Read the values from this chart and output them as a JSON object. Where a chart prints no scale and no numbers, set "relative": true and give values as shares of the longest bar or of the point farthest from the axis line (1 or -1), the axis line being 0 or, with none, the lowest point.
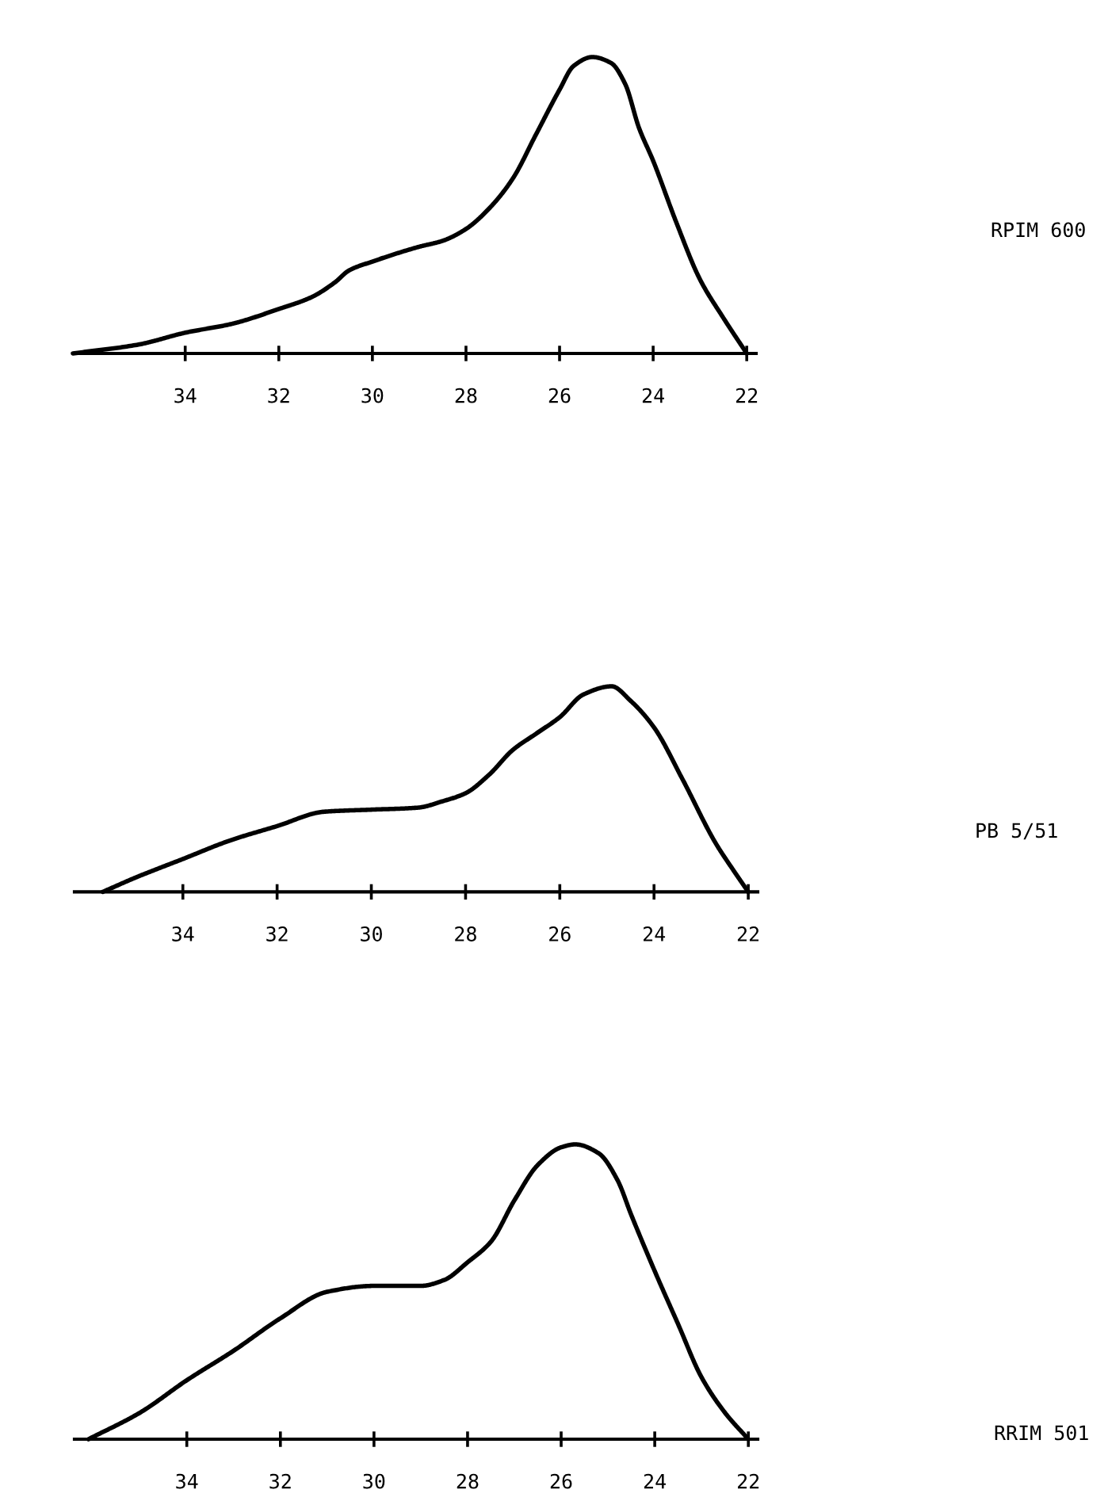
{
  "chart_data": [
    {
      "type": "line",
      "relative": true,
      "xlim": [
        36.4,
        21.8
      ],
      "xticks": [
        34,
        32,
        30,
        28,
        26,
        24,
        22
      ],
      "tick_labels": "x",
      "series": [
        {
          "name": "RPIM 600",
          "color": "#000000",
          "x": [
            36.4,
            35,
            34,
            33,
            32,
            31.3,
            30.8,
            30.5,
            30,
            29,
            28.5,
            28,
            27.5,
            27,
            26.5,
            26,
            25.7,
            25.3,
            24.9,
            24.6,
            24.3,
            24,
            23.5,
            23,
            22.5,
            22
          ],
          "values": [
            0,
            0.03,
            0.07,
            0.1,
            0.15,
            0.19,
            0.24,
            0.28,
            0.31,
            0.36,
            0.38,
            0.42,
            0.49,
            0.59,
            0.74,
            0.89,
            0.97,
            1,
            0.98,
            0.91,
            0.76,
            0.65,
            0.44,
            0.25,
            0.12,
            0
          ]
        }
      ]
    },
    {
      "type": "line",
      "relative": true,
      "xlim": [
        36.3,
        21.8
      ],
      "xticks": [
        34,
        32,
        30,
        28,
        26,
        24,
        22
      ],
      "tick_labels": "x",
      "series": [
        {
          "name": "PB 5/51",
          "color": "#000000",
          "x": [
            35.7,
            35,
            34,
            33,
            32,
            31,
            30,
            29,
            28.5,
            28,
            27.5,
            27,
            26.5,
            26,
            25.5,
            24.9,
            24.5,
            24,
            23.4,
            22.7,
            22.3,
            22
          ],
          "values": [
            0,
            0.07,
            0.16,
            0.25,
            0.32,
            0.39,
            0.4,
            0.41,
            0.44,
            0.48,
            0.57,
            0.69,
            0.77,
            0.85,
            0.96,
            1,
            0.93,
            0.8,
            0.55,
            0.24,
            0.1,
            0
          ]
        }
      ]
    },
    {
      "type": "line",
      "relative": true,
      "xlim": [
        36.4,
        21.8
      ],
      "xticks": [
        34,
        32,
        30,
        28,
        26,
        24,
        22
      ],
      "tick_labels": "x",
      "series": [
        {
          "name": "RRIM 501",
          "color": "#000000",
          "x": [
            36.1,
            35,
            34,
            33,
            32,
            31,
            30,
            29,
            28.5,
            28,
            27.5,
            27,
            26.5,
            26,
            25.7,
            25.2,
            24.8,
            24.5,
            24,
            23.5,
            23,
            22.5,
            22
          ],
          "values": [
            0,
            0.09,
            0.2,
            0.3,
            0.41,
            0.5,
            0.52,
            0.52,
            0.54,
            0.6,
            0.67,
            0.81,
            0.93,
            0.99,
            1,
            0.97,
            0.88,
            0.76,
            0.57,
            0.39,
            0.21,
            0.09,
            0
          ]
        }
      ]
    }
  ]
}
